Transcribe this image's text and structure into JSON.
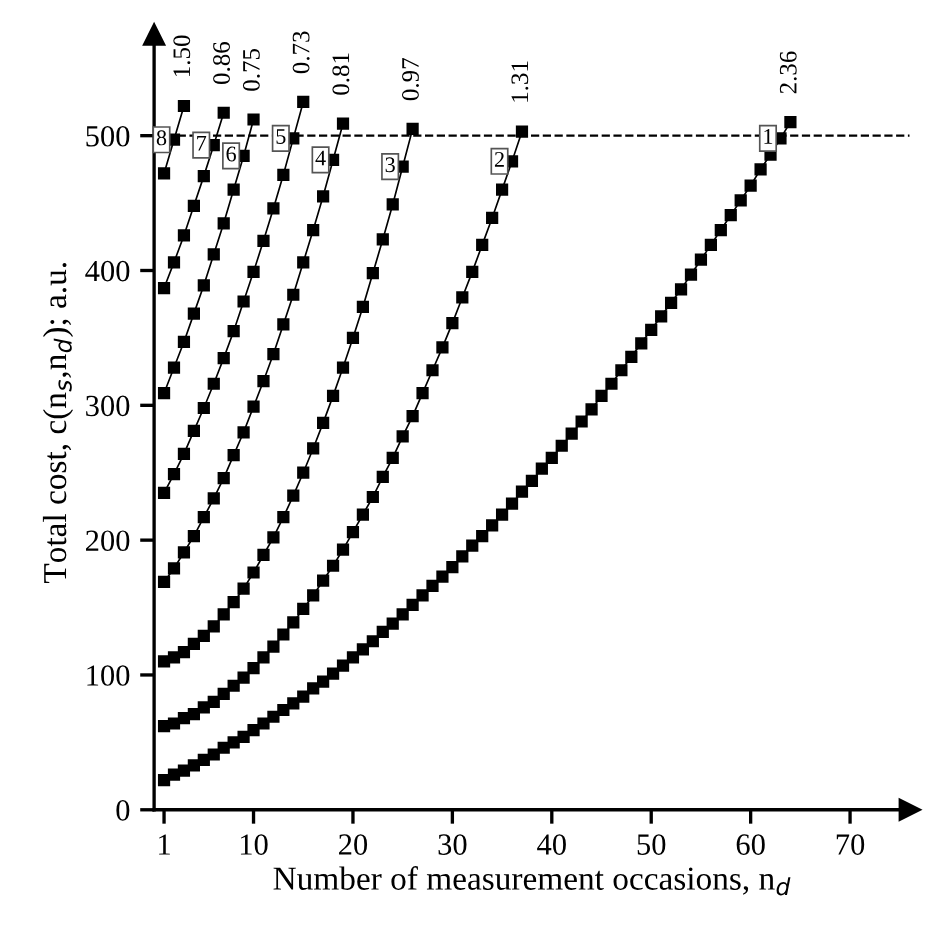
{
  "chart_data": {
    "type": "line",
    "xlabel": "Number of measurement occasions, n$_{d}$",
    "ylabel": "Total cost, c(n$_{s}$,n$_{d}$); a.u.",
    "xlim": [
      0,
      76
    ],
    "ylim": [
      0,
      575
    ],
    "xticks": [
      1,
      10,
      20,
      30,
      40,
      50,
      60,
      70
    ],
    "yticks": [
      0,
      100,
      200,
      300,
      400,
      500
    ],
    "grid": false,
    "legend": false,
    "marker": "square",
    "line_style": "solid",
    "ref_lines": [
      {
        "axis": "y",
        "value": 500,
        "color": "#000000",
        "line_style": "dashed"
      }
    ],
    "series": [
      {
        "name": "1",
        "color": "#000000",
        "x": [
          1,
          2,
          3,
          4,
          5,
          6,
          7,
          8,
          9,
          10,
          11,
          12,
          13,
          14,
          15,
          16,
          17,
          18,
          19,
          20,
          21,
          22,
          23,
          24,
          25,
          26,
          27,
          28,
          29,
          30,
          31,
          32,
          33,
          34,
          35,
          36,
          37,
          38,
          39,
          40,
          41,
          42,
          43,
          44,
          45,
          46,
          47,
          48,
          49,
          50,
          51,
          52,
          53,
          54,
          55,
          56,
          57,
          58,
          59,
          60,
          61,
          62,
          63,
          64
        ],
        "values": [
          22,
          26,
          29,
          33,
          37,
          41,
          46,
          50,
          54,
          59,
          64,
          69,
          74,
          79,
          84,
          90,
          95,
          101,
          107,
          113,
          119,
          125,
          132,
          138,
          145,
          152,
          159,
          166,
          173,
          180,
          188,
          196,
          203,
          211,
          219,
          227,
          236,
          244,
          253,
          261,
          270,
          279,
          288,
          297,
          307,
          316,
          326,
          336,
          346,
          356,
          366,
          376,
          386,
          397,
          408,
          419,
          430,
          441,
          452,
          463,
          475,
          486,
          498,
          510
        ]
      },
      {
        "name": "2",
        "color": "#000000",
        "x": [
          1,
          2,
          3,
          4,
          5,
          6,
          7,
          8,
          9,
          10,
          11,
          12,
          13,
          14,
          15,
          16,
          17,
          18,
          19,
          20,
          21,
          22,
          23,
          24,
          25,
          26,
          27,
          28,
          29,
          30,
          31,
          32,
          33,
          34,
          35,
          36,
          37
        ],
        "values": [
          62,
          64,
          68,
          71,
          76,
          80,
          86,
          92,
          98,
          105,
          113,
          121,
          130,
          139,
          149,
          159,
          170,
          181,
          193,
          206,
          219,
          232,
          247,
          261,
          277,
          292,
          309,
          326,
          343,
          361,
          380,
          399,
          419,
          439,
          460,
          481,
          503
        ]
      },
      {
        "name": "3",
        "color": "#000000",
        "x": [
          1,
          2,
          3,
          4,
          5,
          6,
          7,
          8,
          9,
          10,
          11,
          12,
          13,
          14,
          15,
          16,
          17,
          18,
          19,
          20,
          21,
          22,
          23,
          24,
          25,
          26
        ],
        "values": [
          110,
          113,
          117,
          123,
          129,
          136,
          145,
          154,
          164,
          176,
          189,
          202,
          217,
          233,
          250,
          268,
          287,
          307,
          328,
          350,
          373,
          398,
          423,
          449,
          477,
          505
        ]
      },
      {
        "name": "4",
        "color": "#000000",
        "x": [
          1,
          2,
          3,
          4,
          5,
          6,
          7,
          8,
          9,
          10,
          11,
          12,
          13,
          14,
          15,
          16,
          17,
          18,
          19
        ],
        "values": [
          169,
          179,
          191,
          203,
          217,
          231,
          246,
          263,
          280,
          299,
          318,
          338,
          360,
          382,
          406,
          430,
          455,
          482,
          509
        ]
      },
      {
        "name": "5",
        "color": "#000000",
        "x": [
          1,
          2,
          3,
          4,
          5,
          6,
          7,
          8,
          9,
          10,
          11,
          12,
          13,
          14,
          15
        ],
        "values": [
          235,
          249,
          264,
          281,
          298,
          316,
          335,
          355,
          377,
          399,
          422,
          446,
          471,
          498,
          525
        ]
      },
      {
        "name": "6",
        "color": "#000000",
        "x": [
          1,
          2,
          3,
          4,
          5,
          6,
          7,
          8,
          9,
          10
        ],
        "values": [
          309,
          328,
          347,
          368,
          389,
          412,
          435,
          460,
          485,
          512
        ]
      },
      {
        "name": "7",
        "color": "#000000",
        "x": [
          1,
          2,
          3,
          4,
          5,
          6,
          7
        ],
        "values": [
          387,
          406,
          426,
          448,
          470,
          493,
          517
        ]
      },
      {
        "name": "8",
        "color": "#000000",
        "x": [
          1,
          2,
          3
        ],
        "values": [
          472,
          497,
          522
        ]
      }
    ],
    "annotations": [
      {
        "text": "2.36",
        "x": 64,
        "y": 510
      },
      {
        "text": "1.31",
        "x": 37,
        "y": 503
      },
      {
        "text": "0.97",
        "x": 26,
        "y": 505
      },
      {
        "text": "0.81",
        "x": 19,
        "y": 509
      },
      {
        "text": "0.73",
        "x": 15,
        "y": 525
      },
      {
        "text": "0.75",
        "x": 10,
        "y": 512
      },
      {
        "text": "0.86",
        "x": 7,
        "y": 517
      },
      {
        "text": "1.50",
        "x": 3,
        "y": 522
      }
    ]
  }
}
